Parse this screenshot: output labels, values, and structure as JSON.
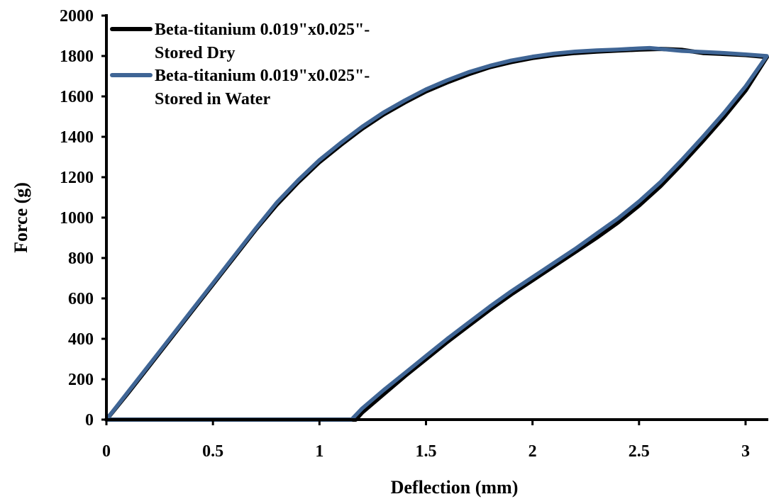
{
  "chart_data": {
    "type": "line",
    "title": "",
    "xlabel": "Deflection (mm)",
    "ylabel": "Force (g)",
    "xlim": [
      0,
      3.1
    ],
    "ylim": [
      0,
      2000
    ],
    "x_ticks": [
      0,
      0.5,
      1,
      1.5,
      2,
      2.5,
      3
    ],
    "x_tick_labels": [
      "0",
      "0.5",
      "1",
      "1.5",
      "2",
      "2.5",
      "3"
    ],
    "y_ticks": [
      0,
      200,
      400,
      600,
      800,
      1000,
      1200,
      1400,
      1600,
      1800,
      2000
    ],
    "y_tick_labels": [
      "0",
      "200",
      "400",
      "600",
      "800",
      "1000",
      "1200",
      "1400",
      "1600",
      "1800",
      "2000"
    ],
    "grid": false,
    "legend_position": "top-left",
    "series": [
      {
        "name": "Beta-titanium 0.019\"x0.025\"-Stored Dry",
        "legend_lines": [
          "Beta-titanium 0.019\"x0.025\"-",
          "Stored Dry"
        ],
        "color": "#000000",
        "points": [
          [
            0,
            0
          ],
          [
            0.1,
            130
          ],
          [
            0.2,
            265
          ],
          [
            0.3,
            400
          ],
          [
            0.4,
            535
          ],
          [
            0.5,
            670
          ],
          [
            0.6,
            805
          ],
          [
            0.7,
            940
          ],
          [
            0.8,
            1065
          ],
          [
            0.9,
            1175
          ],
          [
            1.0,
            1275
          ],
          [
            1.1,
            1360
          ],
          [
            1.2,
            1440
          ],
          [
            1.3,
            1510
          ],
          [
            1.4,
            1570
          ],
          [
            1.5,
            1625
          ],
          [
            1.6,
            1670
          ],
          [
            1.7,
            1710
          ],
          [
            1.8,
            1745
          ],
          [
            1.9,
            1770
          ],
          [
            2.0,
            1790
          ],
          [
            2.1,
            1805
          ],
          [
            2.2,
            1815
          ],
          [
            2.3,
            1822
          ],
          [
            2.4,
            1827
          ],
          [
            2.5,
            1832
          ],
          [
            2.6,
            1835
          ],
          [
            2.7,
            1830
          ],
          [
            2.8,
            1815
          ],
          [
            2.9,
            1810
          ],
          [
            3.0,
            1805
          ],
          [
            3.1,
            1795
          ],
          [
            3.0,
            1630
          ],
          [
            2.9,
            1500
          ],
          [
            2.8,
            1380
          ],
          [
            2.7,
            1265
          ],
          [
            2.6,
            1155
          ],
          [
            2.5,
            1060
          ],
          [
            2.4,
            975
          ],
          [
            2.3,
            900
          ],
          [
            2.2,
            830
          ],
          [
            2.1,
            760
          ],
          [
            2.0,
            690
          ],
          [
            1.9,
            620
          ],
          [
            1.8,
            545
          ],
          [
            1.7,
            465
          ],
          [
            1.6,
            385
          ],
          [
            1.5,
            300
          ],
          [
            1.4,
            215
          ],
          [
            1.3,
            125
          ],
          [
            1.2,
            35
          ],
          [
            1.17,
            0
          ],
          [
            1.0,
            0
          ],
          [
            0.5,
            0
          ],
          [
            0,
            0
          ]
        ]
      },
      {
        "name": "Beta-titanium 0.019\"x0.025\"-Stored in Water",
        "legend_lines": [
          "Beta-titanium 0.019\"x0.025\"-",
          "Stored in Water"
        ],
        "color": "#3f6595",
        "points": [
          [
            0,
            0
          ],
          [
            0.1,
            135
          ],
          [
            0.2,
            270
          ],
          [
            0.3,
            405
          ],
          [
            0.4,
            540
          ],
          [
            0.5,
            675
          ],
          [
            0.6,
            810
          ],
          [
            0.7,
            945
          ],
          [
            0.8,
            1075
          ],
          [
            0.9,
            1185
          ],
          [
            1.0,
            1285
          ],
          [
            1.1,
            1370
          ],
          [
            1.2,
            1450
          ],
          [
            1.3,
            1520
          ],
          [
            1.4,
            1580
          ],
          [
            1.5,
            1635
          ],
          [
            1.6,
            1680
          ],
          [
            1.7,
            1720
          ],
          [
            1.8,
            1752
          ],
          [
            1.9,
            1778
          ],
          [
            2.0,
            1797
          ],
          [
            2.1,
            1812
          ],
          [
            2.2,
            1822
          ],
          [
            2.3,
            1828
          ],
          [
            2.4,
            1832
          ],
          [
            2.5,
            1838
          ],
          [
            2.55,
            1840
          ],
          [
            2.6,
            1835
          ],
          [
            2.7,
            1825
          ],
          [
            2.8,
            1820
          ],
          [
            2.9,
            1815
          ],
          [
            3.0,
            1808
          ],
          [
            3.1,
            1800
          ],
          [
            3.0,
            1650
          ],
          [
            2.9,
            1520
          ],
          [
            2.8,
            1400
          ],
          [
            2.7,
            1285
          ],
          [
            2.6,
            1175
          ],
          [
            2.5,
            1080
          ],
          [
            2.4,
            995
          ],
          [
            2.3,
            920
          ],
          [
            2.2,
            845
          ],
          [
            2.1,
            775
          ],
          [
            2.0,
            705
          ],
          [
            1.9,
            635
          ],
          [
            1.8,
            560
          ],
          [
            1.7,
            480
          ],
          [
            1.6,
            400
          ],
          [
            1.5,
            315
          ],
          [
            1.4,
            230
          ],
          [
            1.3,
            145
          ],
          [
            1.2,
            55
          ],
          [
            1.15,
            0
          ],
          [
            1.0,
            0
          ],
          [
            0.5,
            0
          ],
          [
            0,
            0
          ]
        ]
      }
    ]
  }
}
